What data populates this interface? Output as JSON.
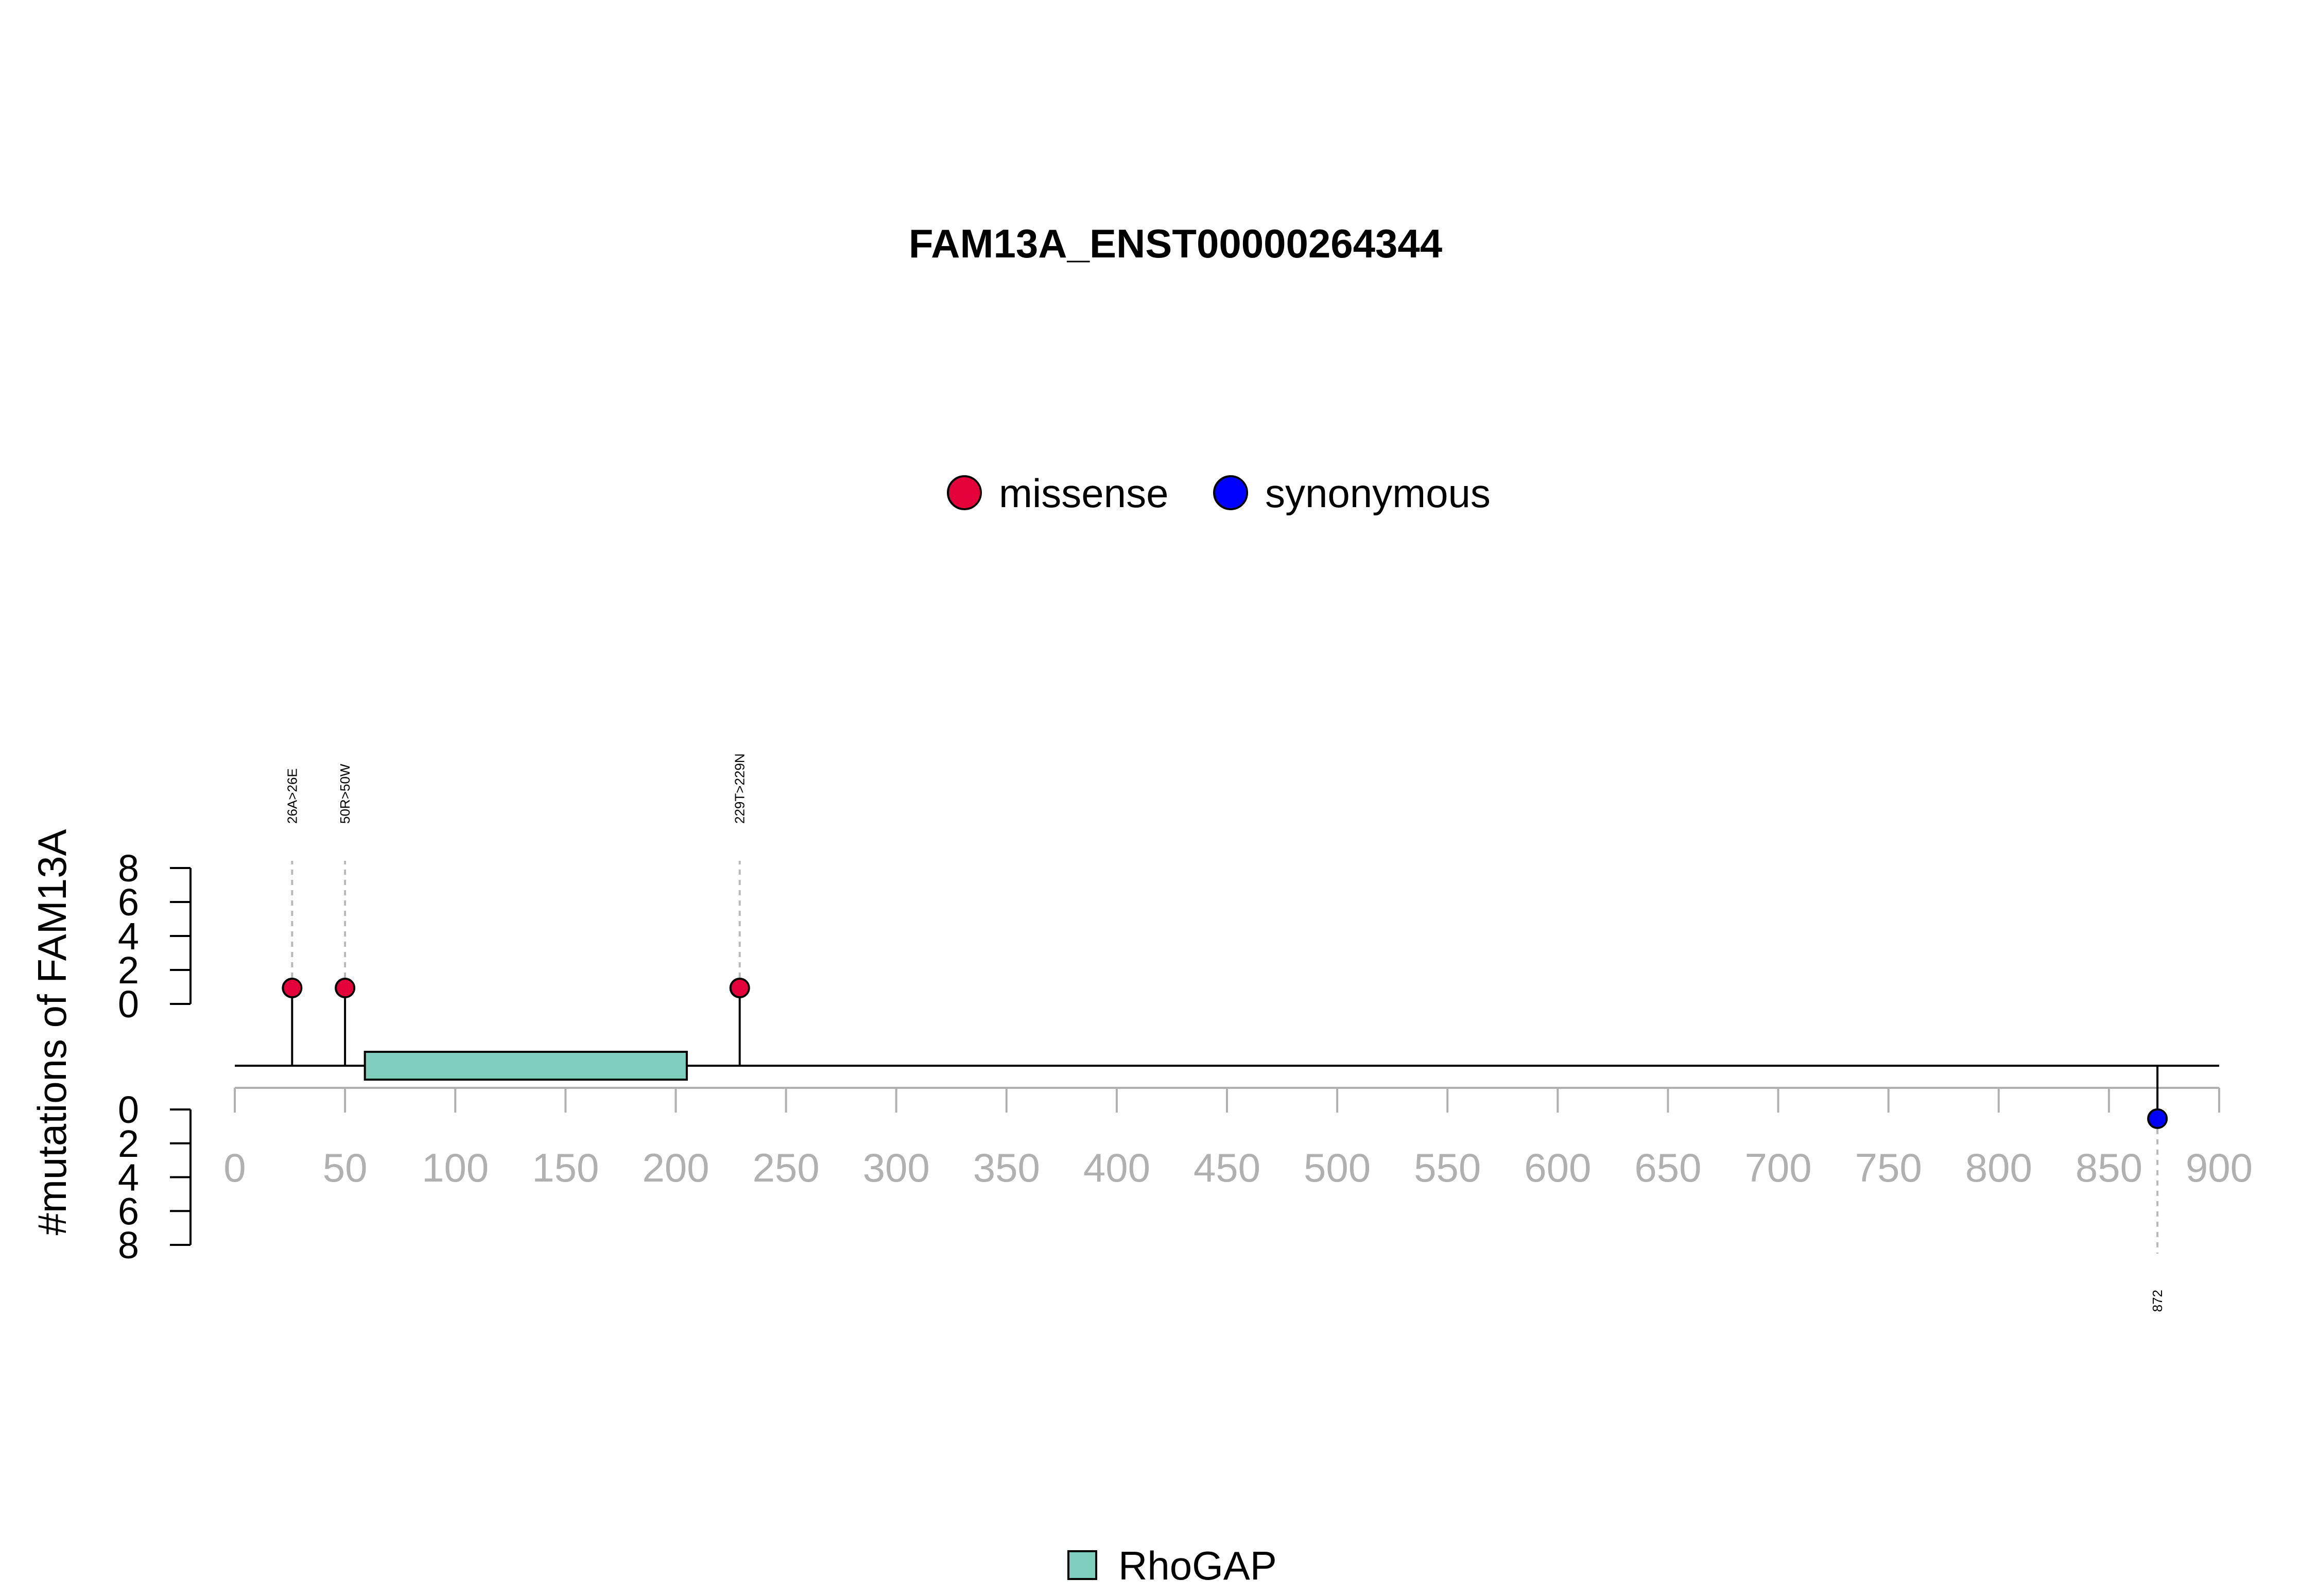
{
  "chart_data": {
    "type": "lollipop",
    "title": "FAM13A_ENST00000264344",
    "ylabel": "#mutations of FAM13A",
    "xlim": [
      0,
      900
    ],
    "x_ticks": [
      0,
      50,
      100,
      150,
      200,
      250,
      300,
      350,
      400,
      450,
      500,
      550,
      600,
      650,
      700,
      750,
      800,
      850,
      900
    ],
    "y_ticks": [
      0,
      2,
      4,
      6,
      8
    ],
    "ylim": [
      0,
      8
    ],
    "legend": [
      {
        "label": "missense",
        "color": "#e4003a"
      },
      {
        "label": "synonymous",
        "color": "#0000ff"
      }
    ],
    "domains": [
      {
        "name": "RhoGAP",
        "start": 59,
        "end": 205,
        "color": "#7fcdbb"
      }
    ],
    "domain_legend": [
      {
        "label": "RhoGAP",
        "color": "#7fcdbb"
      }
    ],
    "mutations": [
      {
        "position": 26,
        "label": "26A>26E",
        "type": "missense",
        "count": 1,
        "side": "top"
      },
      {
        "position": 50,
        "label": "50R>50W",
        "type": "missense",
        "count": 1,
        "side": "top"
      },
      {
        "position": 229,
        "label": "229T>229N",
        "type": "missense",
        "count": 1,
        "side": "top"
      },
      {
        "position": 872,
        "label": "872",
        "type": "synonymous",
        "count": 1,
        "side": "bottom"
      }
    ]
  }
}
